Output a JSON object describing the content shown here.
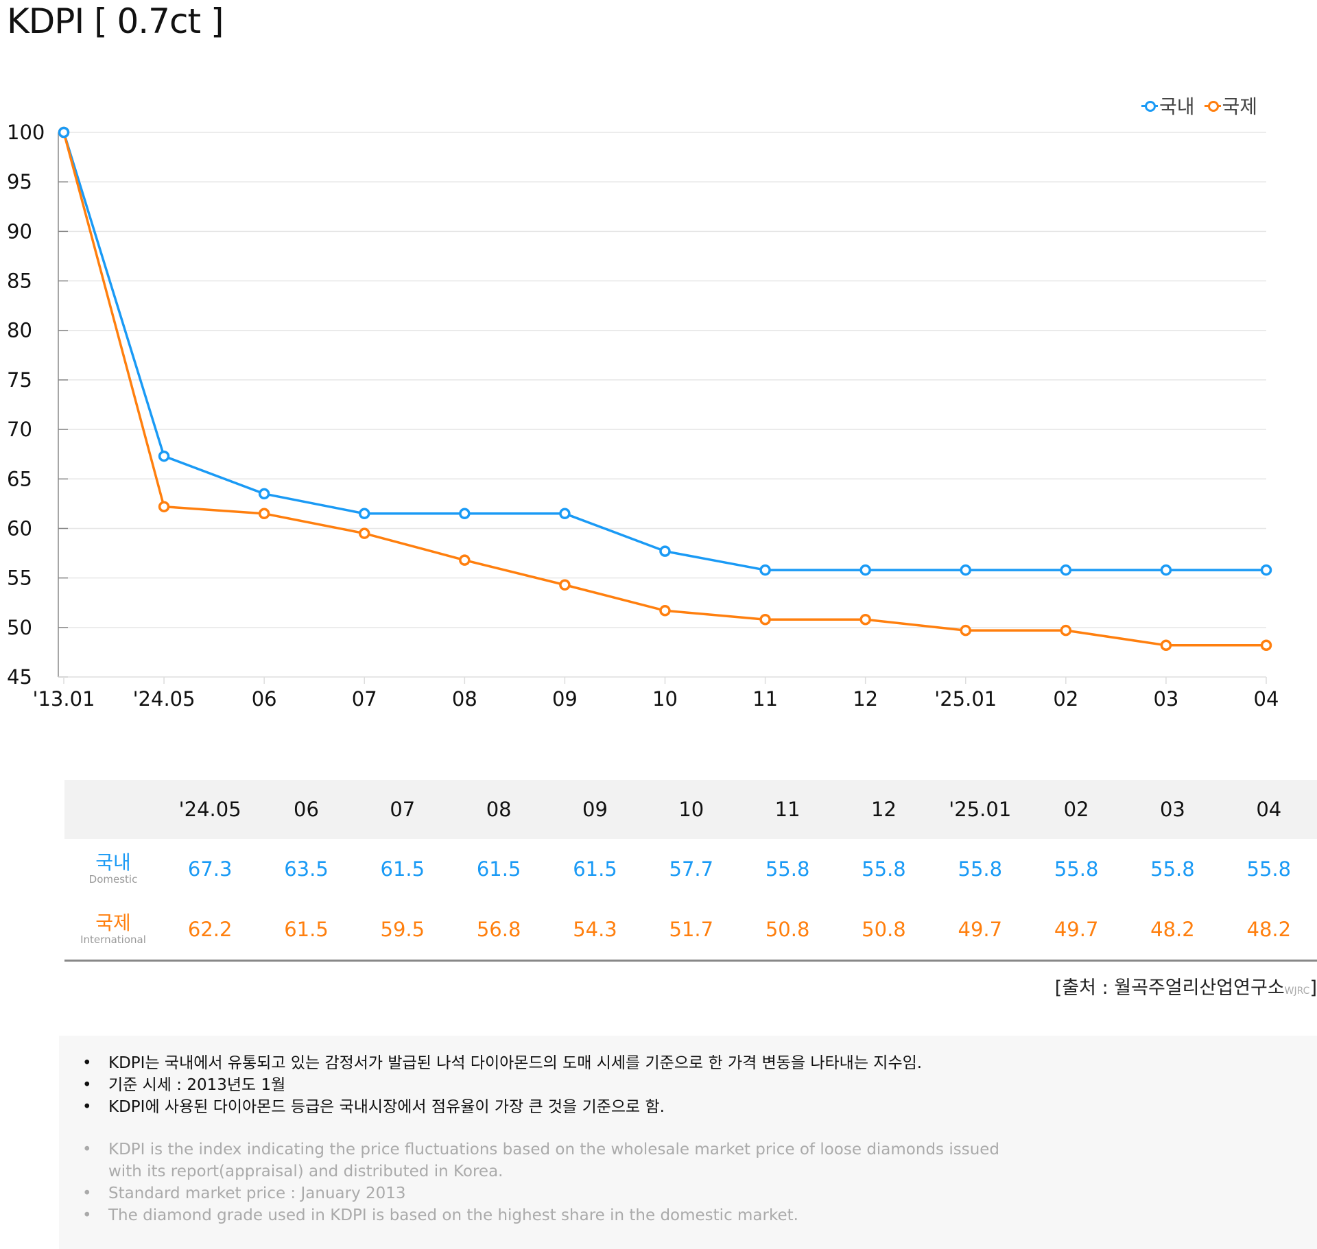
{
  "title": "KDPI [ 0.7ct ]",
  "legend": [
    {
      "label": "국내",
      "color": "#1a9af5"
    },
    {
      "label": "국제",
      "color": "#ff7f0e"
    }
  ],
  "chart_data": {
    "type": "line",
    "title": "KDPI [ 0.7ct ]",
    "xlabel": "",
    "ylabel": "",
    "x": [
      "'13.01",
      "'24.05",
      "06",
      "07",
      "08",
      "09",
      "10",
      "11",
      "12",
      "'25.01",
      "02",
      "03",
      "04"
    ],
    "ylim": [
      45,
      100
    ],
    "yticks": [
      100,
      95,
      90,
      85,
      80,
      75,
      70,
      65,
      60,
      55,
      50,
      45
    ],
    "grid": true,
    "legend_position": "top-right",
    "series": [
      {
        "name": "국내",
        "color": "#1a9af5",
        "values": [
          100,
          67.3,
          63.5,
          61.5,
          61.5,
          61.5,
          57.7,
          55.8,
          55.8,
          55.8,
          55.8,
          55.8,
          55.8
        ]
      },
      {
        "name": "국제",
        "color": "#ff7f0e",
        "values": [
          100,
          62.2,
          61.5,
          59.5,
          56.8,
          54.3,
          51.7,
          50.8,
          50.8,
          49.7,
          49.7,
          48.2,
          48.2
        ]
      }
    ]
  },
  "table": {
    "columns": [
      "'24.05",
      "06",
      "07",
      "08",
      "09",
      "10",
      "11",
      "12",
      "'25.01",
      "02",
      "03",
      "04"
    ],
    "rows": [
      {
        "label_ko": "국내",
        "label_en": "Domestic",
        "values": [
          "67.3",
          "63.5",
          "61.5",
          "61.5",
          "61.5",
          "57.7",
          "55.8",
          "55.8",
          "55.8",
          "55.8",
          "55.8",
          "55.8"
        ]
      },
      {
        "label_ko": "국제",
        "label_en": "International",
        "values": [
          "62.2",
          "61.5",
          "59.5",
          "56.8",
          "54.3",
          "51.7",
          "50.8",
          "50.8",
          "49.7",
          "49.7",
          "48.2",
          "48.2"
        ]
      }
    ]
  },
  "source": {
    "text": "[출처 : 월곡주얼리산업연구소",
    "sub": "WJRC",
    "close": "]"
  },
  "notes_ko": [
    "KDPI는 국내에서 유통되고 있는 감정서가 발급된 나석 다이아몬드의 도매 시세를 기준으로 한 가격 변동을 나타내는 지수임.",
    "기준 시세 : 2013년도 1월",
    "KDPI에 사용된 다이아몬드 등급은 국내시장에서 점유율이 가장 큰 것을 기준으로 함."
  ],
  "notes_en": [
    "KDPI is the index indicating the price fluctuations based on the wholesale market price of loose diamonds issued with its report(appraisal) and distributed in Korea.",
    "Standard market price : January 2013",
    "The diamond grade used in KDPI is based on the highest share in the domestic market."
  ]
}
